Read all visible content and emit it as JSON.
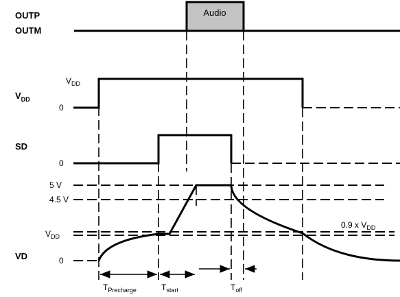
{
  "signals": {
    "outp": "OUTP",
    "outm": "OUTM",
    "vdd": {
      "main": "V",
      "sub": "DD"
    },
    "sd": "SD",
    "vd": "VD"
  },
  "audio_box": {
    "label": "Audio",
    "fill": "#c4c4c4"
  },
  "levels": {
    "vdd_high": {
      "main": "V",
      "sub": "DD"
    },
    "vdd_zero": "0",
    "sd_zero": "0",
    "five_v": "5 V",
    "four_five_v": "4.5 V",
    "vd_vdd": {
      "main": "V",
      "sub": "DD"
    },
    "vd_zero": "0",
    "vd_ratio": {
      "main": "0.9 x V",
      "sub": "DD"
    }
  },
  "timing": {
    "precharge": {
      "main": "T",
      "sub": "Precharge"
    },
    "start": {
      "main": "T",
      "sub": "start"
    },
    "off": {
      "main": "T",
      "sub": "off"
    }
  }
}
